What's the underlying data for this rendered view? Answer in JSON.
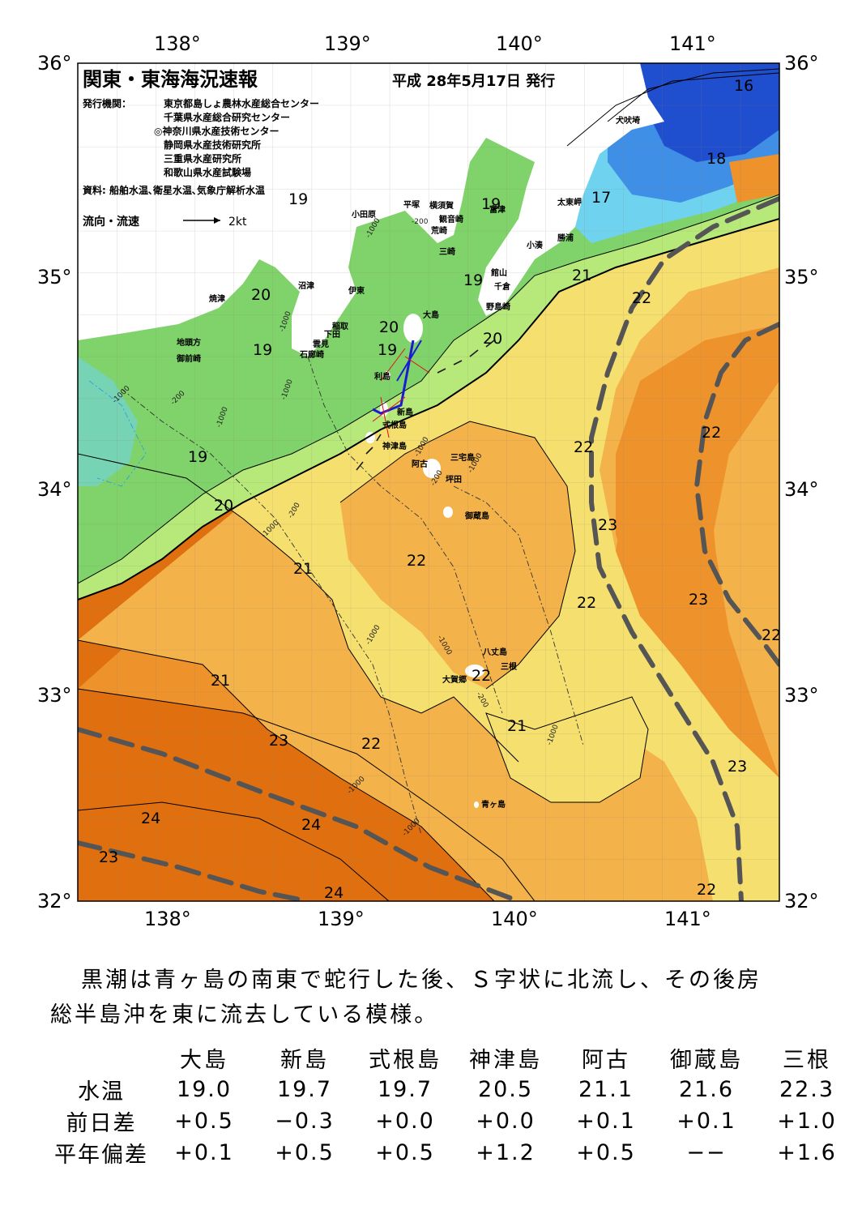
{
  "title": "関東・東海海況速報",
  "issue_date": "平成 28年5月17日 発行",
  "issuer_label": "発行機関：",
  "issuers": [
    "東京都島しょ農林水産総合センター",
    "千葉県水産総合研究センター",
    "◎神奈川県水産技術センター",
    "静岡県水産技術研究所",
    "三重県水産研究所",
    "和歌山県水産試験場"
  ],
  "sources": "資料: 船舶水温､衛星水温､気象庁解析水温",
  "current_legend": {
    "label": "流向・流速",
    "scale": "2kt"
  },
  "axes": {
    "longitude_ticks": [
      "138°",
      "139°",
      "140°",
      "141°"
    ],
    "latitude_ticks": [
      "36°",
      "35°",
      "34°",
      "33°",
      "32°"
    ]
  },
  "place_labels": [
    "犬吠埼",
    "太東岬",
    "勝浦",
    "小湊",
    "館山",
    "千倉",
    "野島崎",
    "富津",
    "観音崎",
    "横須賀",
    "平塚",
    "小田原",
    "荒崎",
    "三崎",
    "沼津",
    "伊東",
    "焼津",
    "稲取",
    "下田",
    "雲見",
    "石廊崎",
    "地頭方",
    "御前崎",
    "大島",
    "利島",
    "新島",
    "式根島",
    "神津島",
    "三宅島",
    "阿古",
    "坪田",
    "御蔵島",
    "八丈島",
    "三根",
    "大賀郷",
    "青ヶ島"
  ],
  "isotherm_labels": [
    "16",
    "18",
    "17",
    "19",
    "19",
    "21",
    "22",
    "19",
    "20",
    "20",
    "19",
    "20",
    "19",
    "19",
    "22",
    "22",
    "20",
    "21",
    "22",
    "23",
    "22",
    "23",
    "22",
    "21",
    "22",
    "21",
    "23",
    "22",
    "24",
    "24",
    "23",
    "24",
    "23",
    "22"
  ],
  "depth_labels": [
    "-200",
    "-1000",
    "-1000",
    "-1000",
    "-200",
    "-1000",
    "-1000",
    "-200",
    "-1000",
    "-1000",
    "-1000",
    "-200",
    "-1000",
    "-200",
    "-1000",
    "-1000",
    "-1000",
    "-1000"
  ],
  "colors": {
    "t16": "#1f4fcf",
    "t17": "#3f8fe6",
    "t18": "#6fd3ef",
    "t19": "#7fd36a",
    "t20": "#b6e87a",
    "t21": "#f5e06f",
    "t22": "#f3b24a",
    "t23": "#ee922c",
    "t24": "#e0700f",
    "land": "#ffffff",
    "kuroshio": "#555555",
    "current_arrow": "#1a1a1a",
    "track": "#1b1bd6",
    "adcp": "#e01010"
  },
  "description": {
    "line1": "黒潮は青ヶ島の南東で蛇行した後、Ｓ字状に北流し、その後房",
    "line2": "総半島沖を東に流去している模様。"
  },
  "table": {
    "stations": [
      "大島",
      "新島",
      "式根島",
      "神津島",
      "阿古",
      "御蔵島",
      "三根"
    ],
    "rows": [
      {
        "label": "水温",
        "values": [
          "19.0",
          "19.7",
          "19.7",
          "20.5",
          "21.1",
          "21.6",
          "22.3"
        ]
      },
      {
        "label": "前日差",
        "values": [
          "+0.5",
          "−0.3",
          "+0.0",
          "+0.0",
          "+0.1",
          "+0.1",
          "+1.0"
        ]
      },
      {
        "label": "平年偏差",
        "values": [
          "+0.1",
          "+0.5",
          "+0.5",
          "+1.2",
          "+0.5",
          "−−",
          "+1.6"
        ]
      }
    ]
  }
}
